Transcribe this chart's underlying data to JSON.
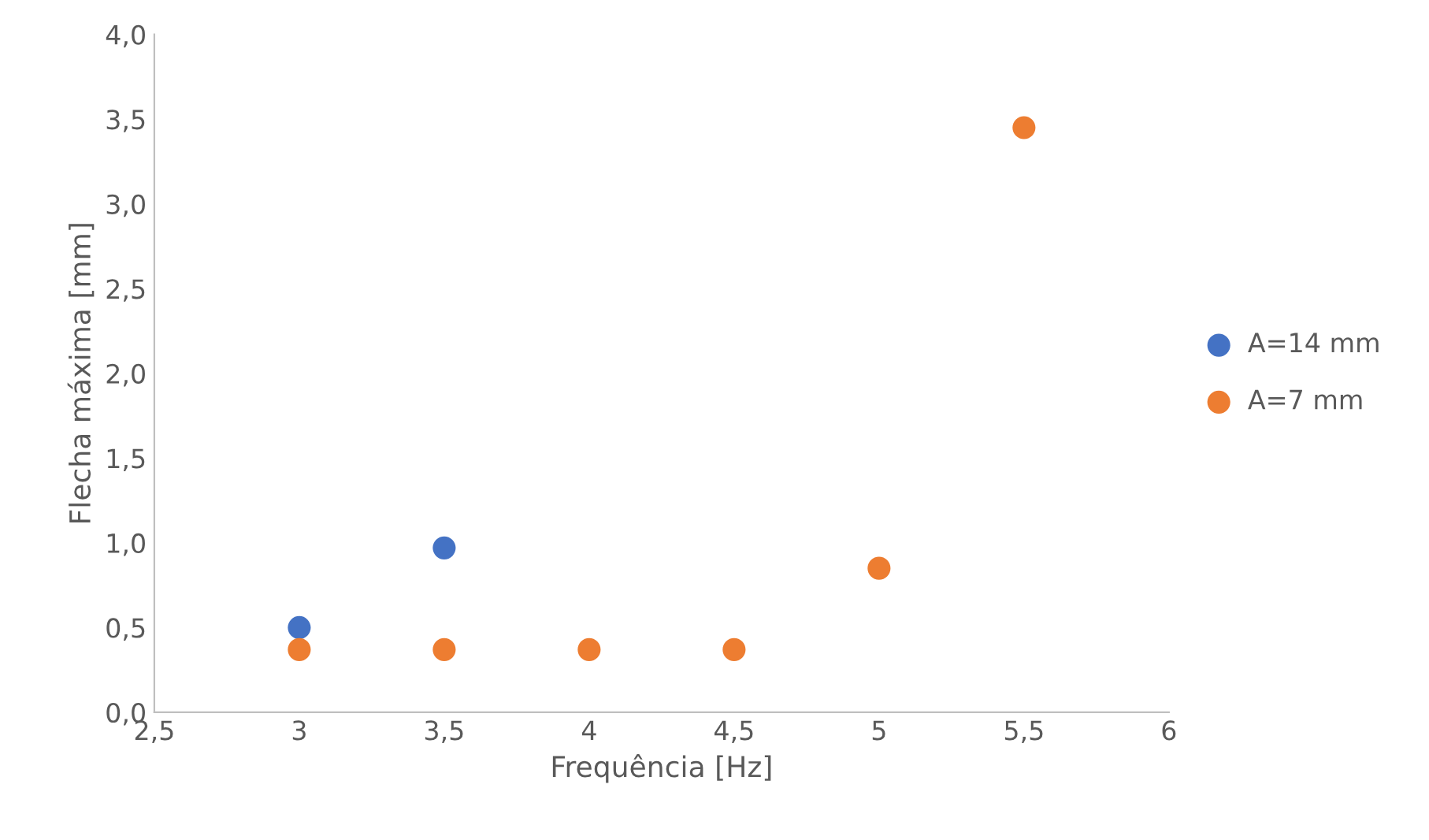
{
  "chart_data": {
    "type": "scatter",
    "xlabel": "Frequência [Hz]",
    "ylabel": "Flecha máxima [mm]",
    "series": [
      {
        "name": "A=14 mm",
        "color": "#4472c4",
        "x": [
          3,
          3.5
        ],
        "values": [
          0.5,
          0.97
        ]
      },
      {
        "name": "A=7 mm",
        "color": "#ed7d31",
        "x": [
          3,
          3.5,
          4,
          4.5,
          5,
          5.5
        ],
        "values": [
          0.37,
          0.37,
          0.37,
          0.37,
          0.85,
          3.45
        ]
      }
    ],
    "xlim": [
      2.5,
      6
    ],
    "xticks": [
      {
        "value": 2.5,
        "label": "2,5"
      },
      3,
      {
        "value": 3.5,
        "label": "3,5"
      },
      4,
      {
        "value": 4.5,
        "label": "4,5"
      },
      5,
      {
        "value": 5.5,
        "label": "5,5"
      },
      6
    ],
    "ylim": [
      0,
      4
    ],
    "yticks": [
      {
        "value": 0,
        "label": "0,0"
      },
      {
        "value": 0.5,
        "label": "0,5"
      },
      {
        "value": 1,
        "label": "1,0"
      },
      {
        "value": 1.5,
        "label": "1,5"
      },
      {
        "value": 2,
        "label": "2,0"
      },
      {
        "value": 2.5,
        "label": "2,5"
      },
      {
        "value": 3,
        "label": "3,0"
      },
      {
        "value": 3.5,
        "label": "3,5"
      },
      {
        "value": 4,
        "label": "4,0"
      }
    ],
    "grid": false,
    "legend": "right",
    "marker": "circle"
  }
}
